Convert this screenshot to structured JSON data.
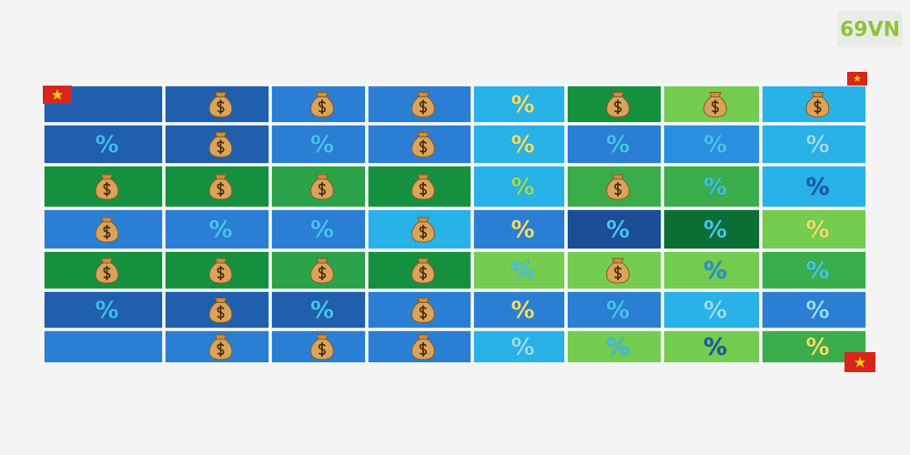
{
  "logo": "69VN",
  "grid": {
    "rows": [
      {
        "cells": [
          {
            "bg": "#1f5fae"
          },
          {
            "bg": "#1f5fae",
            "icon": "bag"
          },
          {
            "bg": "#2a7fd4",
            "icon": "bag"
          },
          {
            "bg": "#2a7fd4",
            "icon": "bag"
          },
          {
            "bg": "#29b2e8",
            "icon": "%",
            "fg": "#f4e36a"
          },
          {
            "bg": "#15903f",
            "icon": "bag"
          },
          {
            "bg": "#74cc50",
            "icon": "bag"
          },
          {
            "bg": "#29b2e8",
            "icon": "bag"
          }
        ]
      },
      {
        "cells": [
          {
            "bg": "#1f5fae",
            "icon": "%",
            "fg": "#3fc0f0"
          },
          {
            "bg": "#1f5fae",
            "icon": "bag"
          },
          {
            "bg": "#2a7fd4",
            "icon": "%",
            "fg": "#48c8f4"
          },
          {
            "bg": "#2a7fd4",
            "icon": "bag"
          },
          {
            "bg": "#29b2e8",
            "icon": "%",
            "fg": "#f4e36a"
          },
          {
            "bg": "#2a7fd4",
            "icon": "%",
            "fg": "#48c8f4"
          },
          {
            "bg": "#2a8fe0",
            "icon": "%",
            "fg": "#48c8f4"
          },
          {
            "bg": "#29b2e8",
            "icon": "%",
            "fg": "#9ae2fa"
          }
        ]
      },
      {
        "cells": [
          {
            "bg": "#15903f",
            "icon": "bag"
          },
          {
            "bg": "#15903f",
            "icon": "bag"
          },
          {
            "bg": "#2aa24a",
            "icon": "bag"
          },
          {
            "bg": "#15903f",
            "icon": "bag"
          },
          {
            "bg": "#29b2e8",
            "icon": "%",
            "fg": "#9fe05a"
          },
          {
            "bg": "#3aad4a",
            "icon": "bag"
          },
          {
            "bg": "#3aad4a",
            "icon": "%",
            "fg": "#3fc0f0"
          },
          {
            "bg": "#29b2e8",
            "icon": "%",
            "fg": "#1a5aa8"
          }
        ]
      },
      {
        "cells": [
          {
            "bg": "#2a7fd4",
            "icon": "bag"
          },
          {
            "bg": "#2a7fd4",
            "icon": "%",
            "fg": "#48c8f4"
          },
          {
            "bg": "#2a7fd4",
            "icon": "%",
            "fg": "#48c8f4"
          },
          {
            "bg": "#29b2e8",
            "icon": "bag"
          },
          {
            "bg": "#2a7fd4",
            "icon": "%",
            "fg": "#f4e36a"
          },
          {
            "bg": "#1a4e96",
            "icon": "%",
            "fg": "#48c8f4"
          },
          {
            "bg": "#0b6e35",
            "icon": "%",
            "fg": "#48c8f4"
          },
          {
            "bg": "#74cc50",
            "icon": "%",
            "fg": "#f4e36a"
          }
        ]
      },
      {
        "cells": [
          {
            "bg": "#15903f",
            "icon": "bag"
          },
          {
            "bg": "#15903f",
            "icon": "bag"
          },
          {
            "bg": "#2aa24a",
            "icon": "bag"
          },
          {
            "bg": "#15903f",
            "icon": "bag"
          },
          {
            "bg": "#74cc50",
            "icon": "%",
            "fg": "#48c8f4"
          },
          {
            "bg": "#74cc50",
            "icon": "bag"
          },
          {
            "bg": "#74cc50",
            "icon": "%",
            "fg": "#2a8fe0"
          },
          {
            "bg": "#3aad4a",
            "icon": "%",
            "fg": "#48c8f4"
          }
        ]
      },
      {
        "cells": [
          {
            "bg": "#1f5fae",
            "icon": "%",
            "fg": "#3fc0f0"
          },
          {
            "bg": "#1f5fae",
            "icon": "bag"
          },
          {
            "bg": "#1f5fae",
            "icon": "%",
            "fg": "#48c8f4"
          },
          {
            "bg": "#2a7fd4",
            "icon": "bag"
          },
          {
            "bg": "#2a7fd4",
            "icon": "%",
            "fg": "#f4e36a"
          },
          {
            "bg": "#2a7fd4",
            "icon": "%",
            "fg": "#48c8f4"
          },
          {
            "bg": "#29b2e8",
            "icon": "%",
            "fg": "#9ae2fa"
          },
          {
            "bg": "#2a7fd4",
            "icon": "%",
            "fg": "#9ae2fa"
          }
        ]
      },
      {
        "cells": [
          {
            "bg": "#2a7fd4"
          },
          {
            "bg": "#2a7fd4",
            "icon": "bag"
          },
          {
            "bg": "#2a7fd4",
            "icon": "bag"
          },
          {
            "bg": "#2a7fd4",
            "icon": "bag"
          },
          {
            "bg": "#29b2e8",
            "icon": "%",
            "fg": "#9ae2fa"
          },
          {
            "bg": "#74cc50",
            "icon": "%",
            "fg": "#3fc0f0"
          },
          {
            "bg": "#74cc50",
            "icon": "%",
            "fg": "#1a5aa8"
          },
          {
            "bg": "#3aad4a",
            "icon": "%",
            "fg": "#f4e36a"
          }
        ]
      }
    ]
  }
}
